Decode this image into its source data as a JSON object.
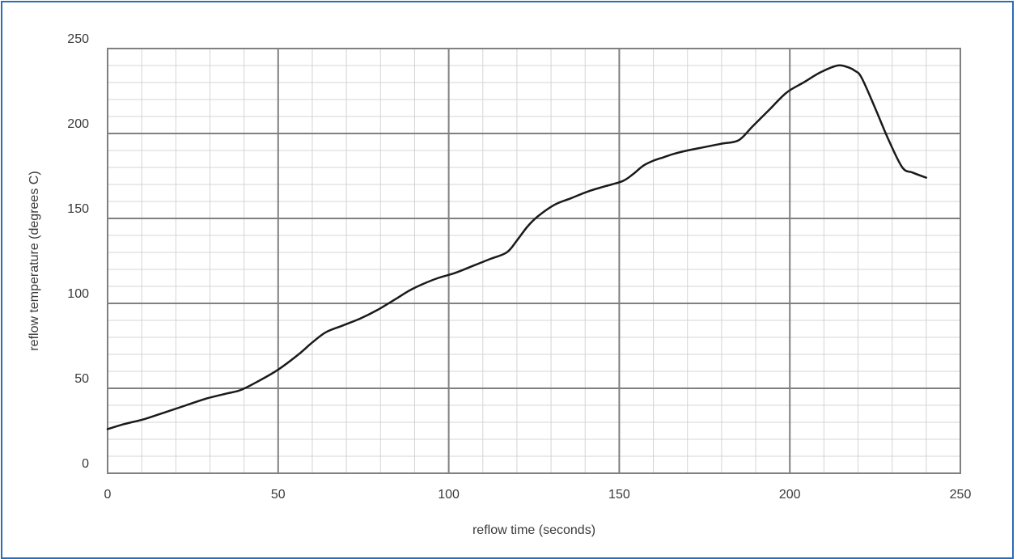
{
  "chart_data": {
    "type": "line",
    "title": "",
    "xlabel": "reflow time (seconds)",
    "ylabel": "reflow temperature (degrees C)",
    "xlim": [
      0,
      250
    ],
    "ylim": [
      0,
      250
    ],
    "x_major_ticks": [
      "0",
      "50",
      "100",
      "150",
      "200",
      "250"
    ],
    "y_major_ticks": [
      "0",
      "50",
      "100",
      "150",
      "200",
      "250"
    ],
    "grid": true,
    "legend": "none",
    "colors": {
      "line": "#1a1a1a",
      "major_grid": "#808080",
      "minor_grid": "#d4d4d4",
      "frame": "#2a6db5"
    },
    "series": [
      {
        "x": [
          0,
          5,
          11,
          17,
          23,
          29,
          35,
          39,
          44,
          50,
          56,
          60,
          64,
          69,
          74,
          79,
          84,
          88,
          92,
          97,
          102,
          107,
          112,
          117,
          120,
          123,
          126,
          131,
          136,
          141,
          146,
          151,
          154,
          157,
          160,
          163,
          166,
          170,
          175,
          180,
          185,
          189,
          194,
          199,
          204,
          209,
          214,
          217,
          219,
          221,
          225,
          229,
          233,
          236,
          240
        ],
        "y": [
          26,
          29,
          32,
          36,
          40,
          44,
          47,
          49,
          54,
          61,
          70,
          77,
          83,
          87,
          91,
          96,
          102,
          107,
          111,
          115,
          118,
          122,
          126,
          130,
          137,
          145,
          151,
          158,
          162,
          166,
          169,
          172,
          176,
          181,
          184,
          186,
          188,
          190,
          192,
          194,
          196,
          204,
          214,
          224,
          230,
          236,
          240,
          239,
          237,
          233,
          215,
          196,
          180,
          177,
          174
        ]
      }
    ]
  }
}
